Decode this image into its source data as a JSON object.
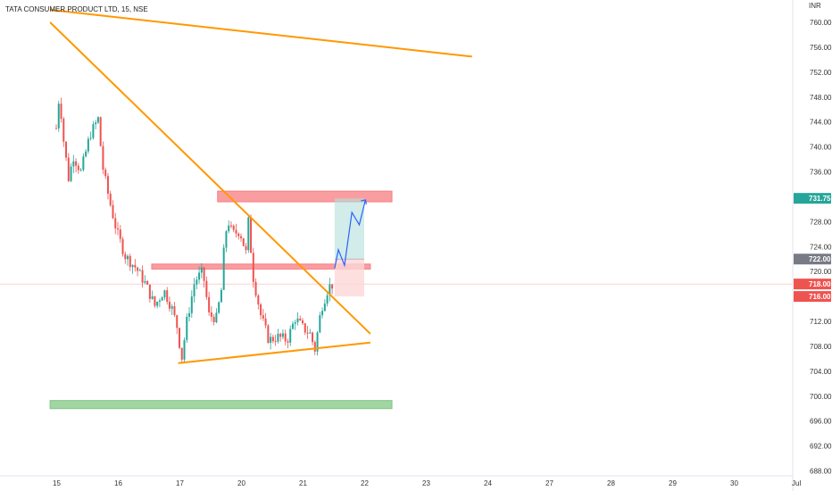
{
  "symbol_title": "TATA CONSUMER PRODUCT LTD, 15, NSE",
  "currency": "INR",
  "colors": {
    "up": "#26a69a",
    "down": "#ef5350",
    "trendline": "#ff9800",
    "resistance_zone": "#f77c80",
    "demand_zone": "#81c784",
    "target_fill": "#b2dfdb",
    "stop_fill": "#fdd7d7",
    "projection": "#2962ff",
    "current_tag": "#ef5350",
    "target_tag": "#26a69a",
    "neutral_tag": "#787b86"
  },
  "price_tags": [
    {
      "label": "731.75",
      "value": 731.75,
      "color": "#26a69a"
    },
    {
      "label": "722.00",
      "value": 722.0,
      "color": "#787b86"
    },
    {
      "label": "718.00",
      "value": 718.0,
      "color": "#ef5350"
    },
    {
      "label": "716.00",
      "value": 716.0,
      "color": "#ef5350"
    }
  ],
  "chart_data": {
    "type": "candlestick",
    "title": "TATA CONSUMER PRODUCT LTD, 15, NSE",
    "y_unit": "INR",
    "ylim": [
      686.5,
      762.5
    ],
    "y_ticks": [
      "760.00",
      "756.00",
      "752.00",
      "748.00",
      "744.00",
      "740.00",
      "736.00",
      "732.00",
      "728.00",
      "724.00",
      "720.00",
      "716.00",
      "712.00",
      "708.00",
      "704.00",
      "700.00",
      "696.00",
      "692.00",
      "688.00"
    ],
    "x_ticks": [
      "15",
      "16",
      "17",
      "20",
      "21",
      "22",
      "23",
      "24",
      "27",
      "28",
      "29",
      "30",
      "Jul"
    ],
    "grid": false,
    "price_path": [
      [
        0,
        743.0
      ],
      [
        0.05,
        748.5
      ],
      [
        0.12,
        741.0
      ],
      [
        0.2,
        735.0
      ],
      [
        0.28,
        738.5
      ],
      [
        0.4,
        736.0
      ],
      [
        0.55,
        742.0
      ],
      [
        0.68,
        744.5
      ],
      [
        0.75,
        737.0
      ],
      [
        0.85,
        732.0
      ],
      [
        0.98,
        726.5
      ],
      [
        1.12,
        722.5
      ],
      [
        1.3,
        720.5
      ],
      [
        1.45,
        718.0
      ],
      [
        1.6,
        714.5
      ],
      [
        1.75,
        717.0
      ],
      [
        1.88,
        714.0
      ],
      [
        1.98,
        710.5
      ],
      [
        2.03,
        705.5
      ],
      [
        2.12,
        712.0
      ],
      [
        2.25,
        718.5
      ],
      [
        2.38,
        720.0
      ],
      [
        2.48,
        713.0
      ],
      [
        2.6,
        712.5
      ],
      [
        2.68,
        717.0
      ],
      [
        2.72,
        723.0
      ],
      [
        2.78,
        728.5
      ],
      [
        2.86,
        726.0
      ],
      [
        2.98,
        726.5
      ],
      [
        3.08,
        723.0
      ],
      [
        3.12,
        728.0
      ],
      [
        3.2,
        719.0
      ],
      [
        3.32,
        713.0
      ],
      [
        3.45,
        709.0
      ],
      [
        3.6,
        709.5
      ],
      [
        3.75,
        709.0
      ],
      [
        3.88,
        712.5
      ],
      [
        4.0,
        711.0
      ],
      [
        4.12,
        710.0
      ],
      [
        4.2,
        707.5
      ],
      [
        4.3,
        714.0
      ],
      [
        4.42,
        717.5
      ],
      [
        4.5,
        718.0
      ]
    ],
    "trendlines": [
      {
        "name": "",
        "points": [
          [
            -0.1,
            762.0
          ],
          [
            6.75,
            754.5
          ]
        ]
      },
      {
        "name": "",
        "points": [
          [
            -0.1,
            760.0
          ],
          [
            5.1,
            710.0
          ]
        ]
      },
      {
        "name": "",
        "points": [
          [
            1.98,
            705.3
          ],
          [
            5.1,
            708.6
          ]
        ]
      }
    ],
    "zones": [
      {
        "label": "",
        "x0": 2.62,
        "x1": 5.45,
        "y0": 731.2,
        "y1": 732.9,
        "color": "#f77c80"
      },
      {
        "label": "",
        "x0": 1.55,
        "x1": 5.1,
        "y0": 720.4,
        "y1": 721.2,
        "color": "#f77c80"
      },
      {
        "label": "",
        "x0": -0.1,
        "x1": 5.45,
        "y0": 698.0,
        "y1": 699.3,
        "color": "#81c784"
      }
    ],
    "long_position": {
      "entry": 722.0,
      "target": 731.75,
      "stop": 716.0,
      "x0": 4.52,
      "x1": 5.0
    },
    "projection_path": [
      [
        4.52,
        720.5
      ],
      [
        4.58,
        723.5
      ],
      [
        4.68,
        721.0
      ],
      [
        4.8,
        729.5
      ],
      [
        4.92,
        727.5
      ],
      [
        5.02,
        731.5
      ]
    ],
    "current_price": 718.0
  }
}
